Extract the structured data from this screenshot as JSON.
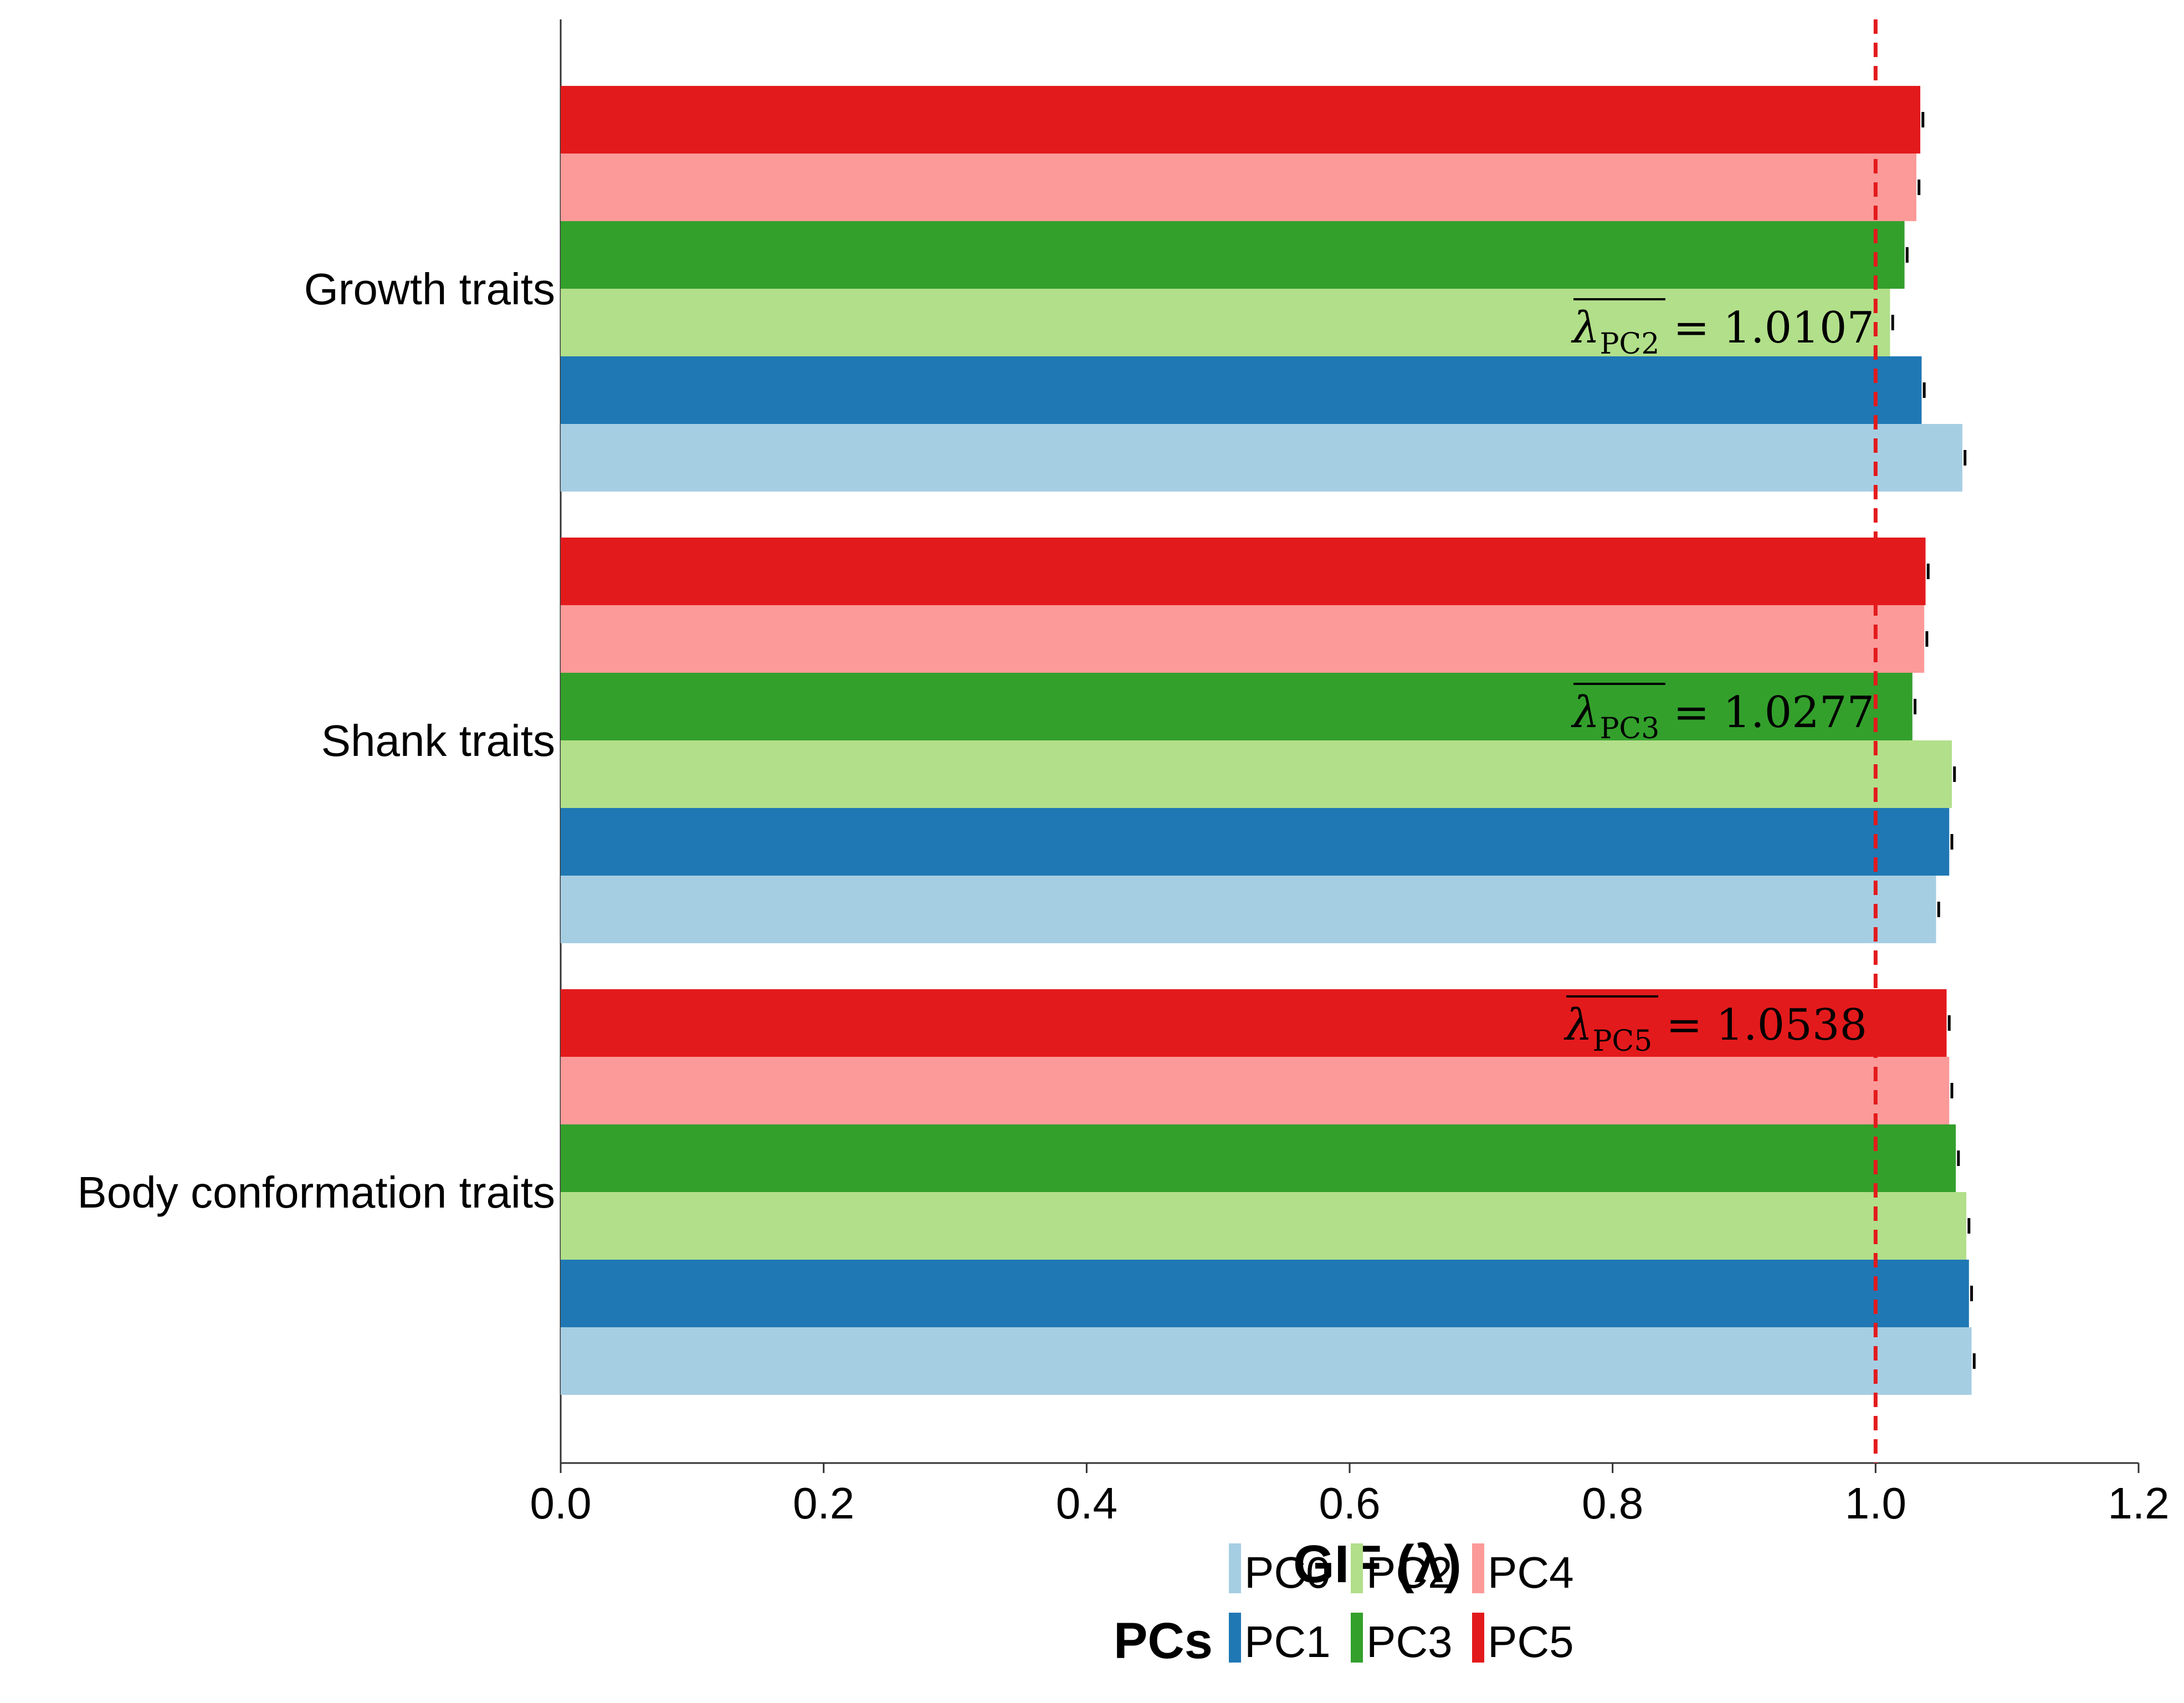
{
  "chart_data": {
    "type": "bar",
    "orientation": "horizontal",
    "xlabel": "GIF (λ)",
    "xlim": [
      0.0,
      1.2
    ],
    "xticks": [
      "0.0",
      "0.2",
      "0.4",
      "0.6",
      "0.8",
      "1.0",
      "1.2"
    ],
    "reference_line": {
      "x": 1.0,
      "style": "dashed",
      "color": "#e31a1c"
    },
    "categories": [
      "Growth traits",
      "Shank traits",
      "Body conformation traits"
    ],
    "series": [
      {
        "name": "PC0",
        "color": "#a6cee3",
        "values": [
          1.066,
          1.046,
          1.073
        ],
        "errors": [
          0.002,
          0.002,
          0.002
        ]
      },
      {
        "name": "PC1",
        "color": "#1f78b4",
        "values": [
          1.035,
          1.056,
          1.071
        ],
        "errors": [
          0.002,
          0.002,
          0.002
        ]
      },
      {
        "name": "PC2",
        "color": "#b2df8a",
        "values": [
          1.011,
          1.058,
          1.069
        ],
        "errors": [
          0.002,
          0.002,
          0.002
        ]
      },
      {
        "name": "PC3",
        "color": "#33a02c",
        "values": [
          1.022,
          1.028,
          1.061
        ],
        "errors": [
          0.002,
          0.002,
          0.002
        ]
      },
      {
        "name": "PC4",
        "color": "#fb9a99",
        "values": [
          1.031,
          1.037,
          1.056
        ],
        "errors": [
          0.002,
          0.002,
          0.002
        ]
      },
      {
        "name": "PC5",
        "color": "#e31a1c",
        "values": [
          1.034,
          1.038,
          1.054
        ],
        "errors": [
          0.002,
          0.002,
          0.002
        ]
      }
    ],
    "annotations": [
      {
        "category": "Growth traits",
        "main": "λ",
        "sub": "PC2",
        "value_text": " = 1.0107"
      },
      {
        "category": "Shank traits",
        "main": "λ",
        "sub": "PC3",
        "value_text": " = 1.0277"
      },
      {
        "category": "Body conformation traits",
        "main": "λ",
        "sub": "PC5",
        "value_text": " = 1.0538"
      }
    ],
    "legend": {
      "title": "PCs",
      "location": "bottom-center",
      "entries": [
        "PC0",
        "PC2",
        "PC4",
        "PC1",
        "PC3",
        "PC5"
      ]
    }
  }
}
